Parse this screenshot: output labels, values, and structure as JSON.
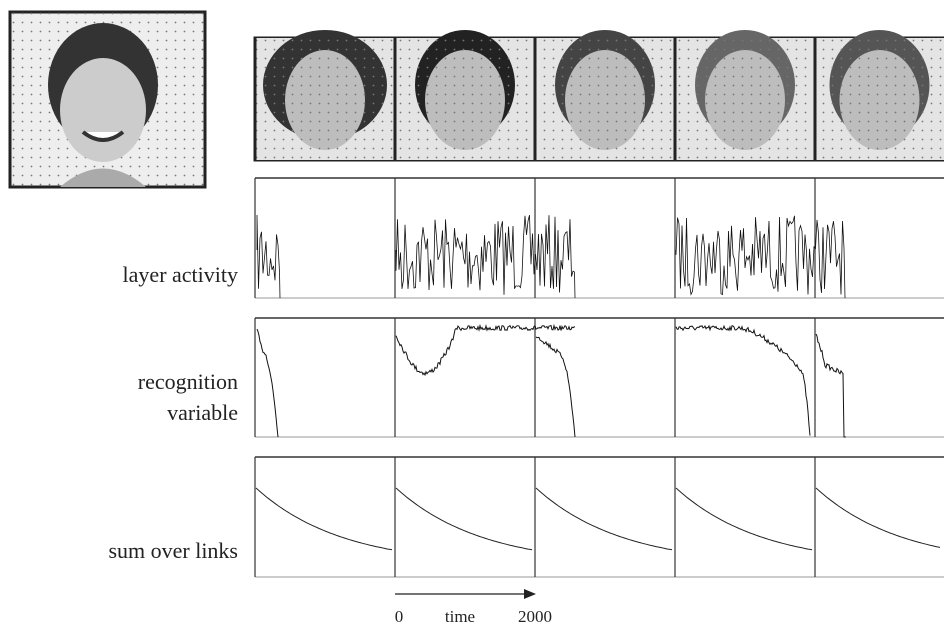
{
  "row_labels": [
    "layer activity",
    "recognition",
    "variable",
    "sum over links"
  ],
  "time_axis": {
    "start": 0,
    "label": "time",
    "end": 2000
  }
}
